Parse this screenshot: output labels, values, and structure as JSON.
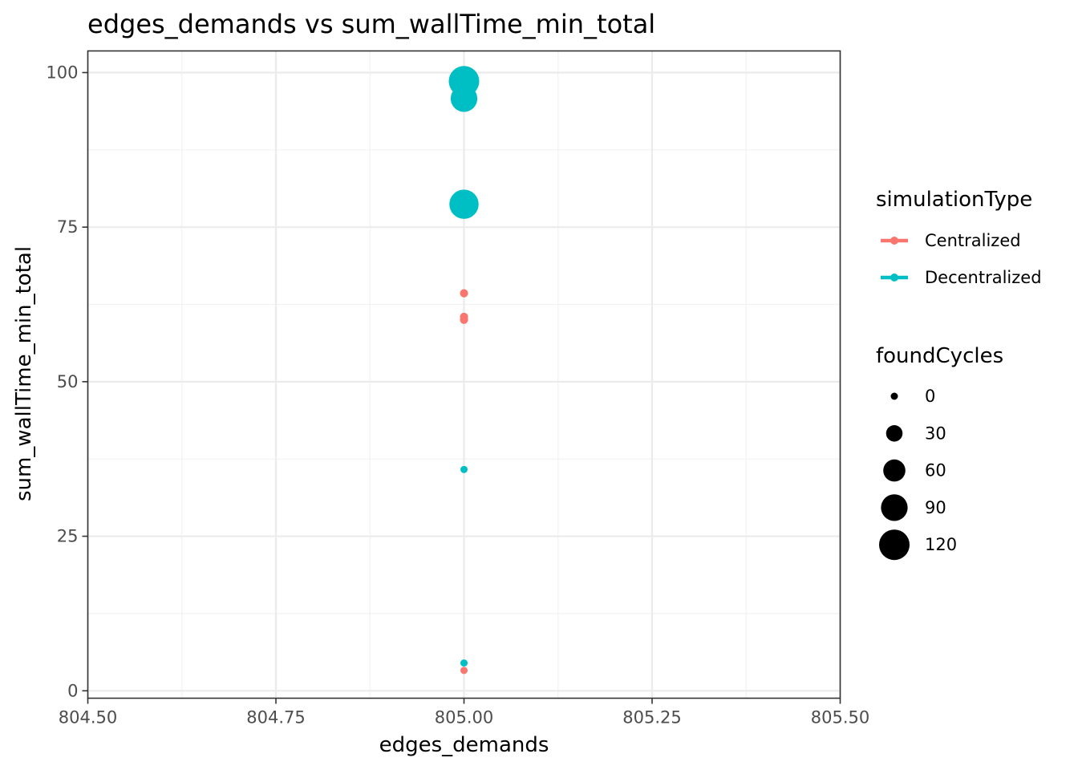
{
  "chart_data": {
    "type": "scatter",
    "title": "edges_demands  vs  sum_wallTime_min_total",
    "xlabel": "edges_demands",
    "ylabel": "sum_wallTime_min_total",
    "xlim": [
      804.5,
      805.5
    ],
    "ylim": [
      -1.2,
      103.5
    ],
    "x_ticks": [
      "804.50",
      "804.75",
      "805.00",
      "805.25",
      "805.50"
    ],
    "y_ticks": [
      "0",
      "25",
      "50",
      "75",
      "100"
    ],
    "grid": true,
    "legend_position": "right",
    "color_legend": {
      "title": "simulationType",
      "entries": [
        {
          "label": "Centralized",
          "color": "#F8766D"
        },
        {
          "label": "Decentralized",
          "color": "#00BFC4"
        }
      ]
    },
    "size_legend": {
      "title": "foundCycles",
      "entries": [
        "0",
        "30",
        "60",
        "90",
        "120"
      ]
    },
    "series": [
      {
        "group": "Centralized",
        "color": "#F8766D",
        "points": [
          {
            "x": 805.0,
            "y": 64.3,
            "foundCycles": 2
          },
          {
            "x": 805.0,
            "y": 60.5,
            "foundCycles": 2
          },
          {
            "x": 805.0,
            "y": 60.0,
            "foundCycles": 2
          },
          {
            "x": 805.0,
            "y": 3.3,
            "foundCycles": 0
          }
        ]
      },
      {
        "group": "Decentralized",
        "color": "#00BFC4",
        "points": [
          {
            "x": 805.0,
            "y": 98.6,
            "foundCycles": 120
          },
          {
            "x": 805.0,
            "y": 95.8,
            "foundCycles": 90
          },
          {
            "x": 805.0,
            "y": 78.7,
            "foundCycles": 110
          },
          {
            "x": 805.0,
            "y": 35.8,
            "foundCycles": 0
          },
          {
            "x": 805.0,
            "y": 4.5,
            "foundCycles": 0
          }
        ]
      }
    ]
  }
}
